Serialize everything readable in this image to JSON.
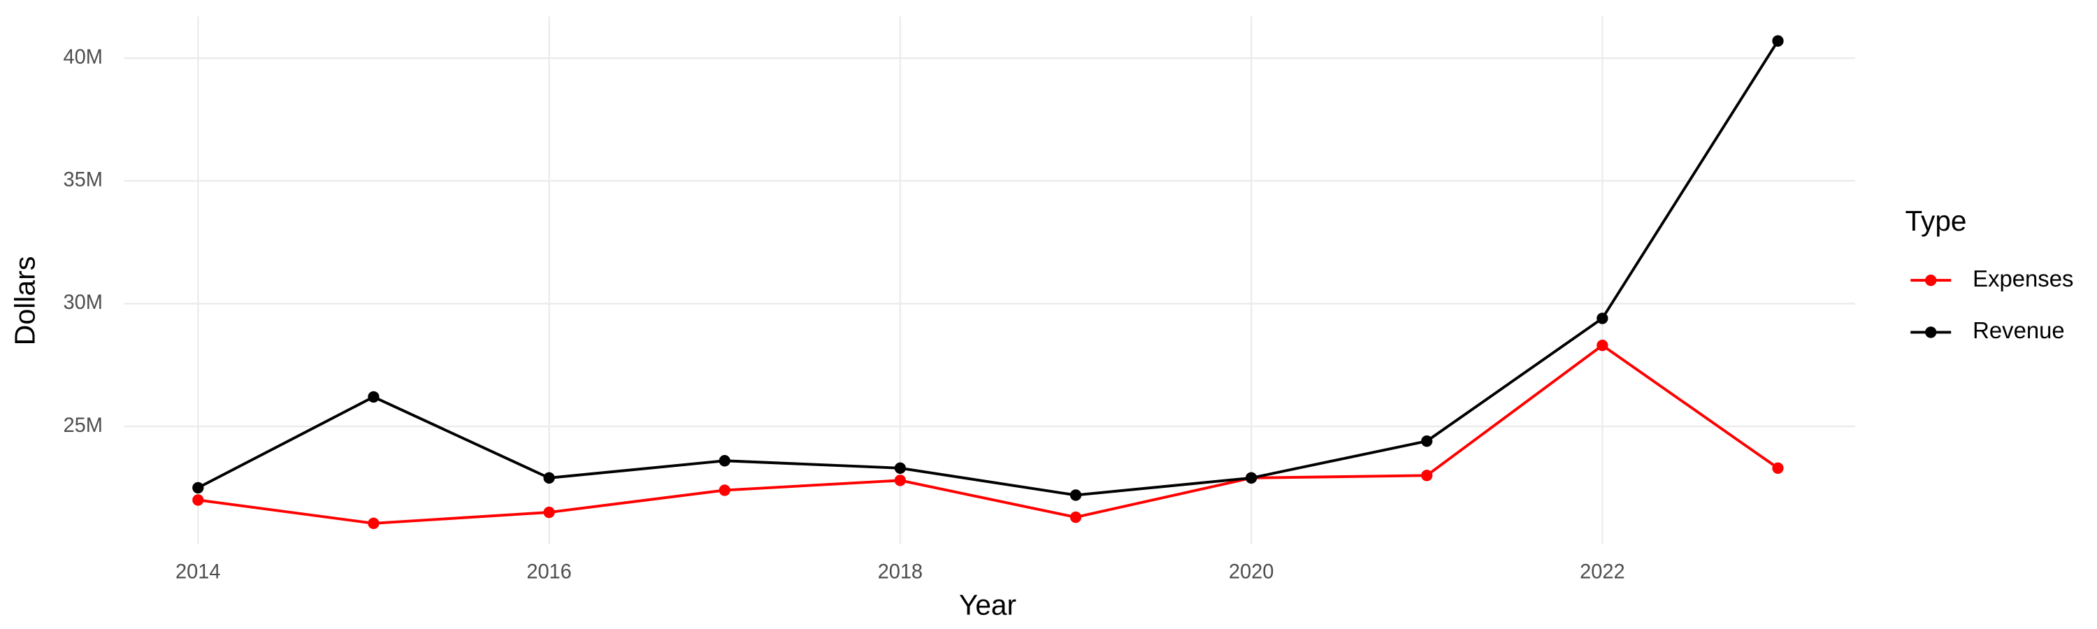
{
  "chart_data": {
    "type": "line",
    "x_label": "Year",
    "y_label": "Dollars",
    "x": [
      2014,
      2015,
      2016,
      2017,
      2018,
      2019,
      2020,
      2021,
      2022,
      2023
    ],
    "series": [
      {
        "name": "Expenses",
        "color": "#ff0000",
        "values": [
          22000000,
          21050000,
          21500000,
          22400000,
          22800000,
          21300000,
          22900000,
          23000000,
          28300000,
          23300000
        ]
      },
      {
        "name": "Revenue",
        "color": "#000000",
        "values": [
          22500000,
          26200000,
          22900000,
          23600000,
          23300000,
          22200000,
          22900000,
          24400000,
          29400000,
          40700000
        ]
      }
    ],
    "xlim": [
      2013.58,
      2023.44
    ],
    "xticks": [
      2014,
      2016,
      2018,
      2020,
      2022
    ],
    "ylim": [
      20200000,
      41700000
    ],
    "yticks": [
      {
        "value": 25000000,
        "label": "25M"
      },
      {
        "value": 30000000,
        "label": "30M"
      },
      {
        "value": 35000000,
        "label": "35M"
      },
      {
        "value": 40000000,
        "label": "40M"
      }
    ],
    "grid": true,
    "legend_title": "Type",
    "legend_position": "right"
  }
}
